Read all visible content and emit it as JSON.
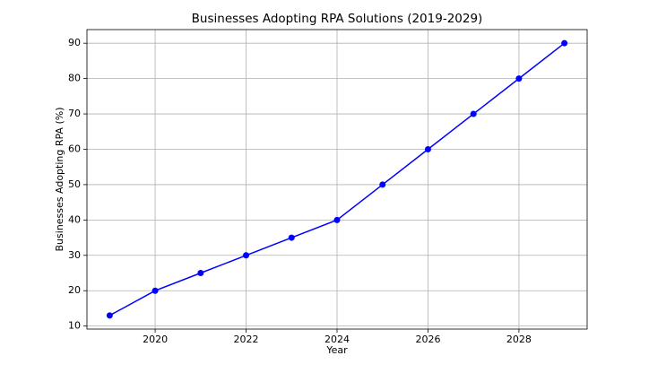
{
  "chart_data": {
    "type": "line",
    "title": "Businesses Adopting RPA Solutions (2019-2029)",
    "x_label": "Year",
    "y_label": "Businesses Adopting RPA (%)",
    "x": [
      2019,
      2020,
      2021,
      2022,
      2023,
      2024,
      2025,
      2026,
      2027,
      2028,
      2029
    ],
    "series": [
      {
        "name": "Businesses Adopting RPA (%)",
        "color": "#0000ff",
        "values": [
          13,
          20,
          25,
          30,
          35,
          40,
          50,
          60,
          70,
          80,
          90
        ]
      }
    ],
    "xlim": [
      2018.5,
      2029.5
    ],
    "xticks": [
      2020,
      2022,
      2024,
      2026,
      2028
    ],
    "ylim": [
      9.15,
      93.85
    ],
    "yticks": [
      10,
      20,
      30,
      40,
      50,
      60,
      70,
      80,
      90
    ],
    "grid": true
  }
}
